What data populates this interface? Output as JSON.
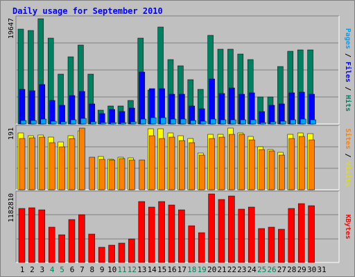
{
  "chart_data": {
    "type": "bar",
    "title": "Daily usage for September 2010",
    "categories": [
      "1",
      "2",
      "3",
      "4",
      "5",
      "6",
      "7",
      "8",
      "9",
      "10",
      "11",
      "12",
      "13",
      "14",
      "15",
      "16",
      "17",
      "18",
      "19",
      "20",
      "21",
      "22",
      "23",
      "24",
      "25",
      "26",
      "27",
      "28",
      "29",
      "30",
      "31"
    ],
    "weekend_days": [
      "4",
      "5",
      "11",
      "12",
      "18",
      "19",
      "25",
      "26"
    ],
    "panels": [
      {
        "id": "hits-files-pages",
        "max_label": "19647",
        "ymax": 19647,
        "right_labels": [
          {
            "text": "Pages",
            "color": "#00a0ff"
          },
          {
            "text": " / ",
            "color": "#000000"
          },
          {
            "text": "Files",
            "color": "#0000ff"
          },
          {
            "text": " / ",
            "color": "#000000"
          },
          {
            "text": "Hits",
            "color": "#008060"
          }
        ],
        "series": [
          {
            "name": "Hits",
            "color": "#008060",
            "values": [
              17660,
              17440,
              19647,
              16000,
              9320,
              12500,
              14700,
              9320,
              2540,
              3350,
              3350,
              4430,
              16060,
              6310,
              18100,
              12040,
              10900,
              8240,
              6430,
              16500,
              13900,
              13900,
              13000,
              11970,
              5010,
              5010,
              10790,
              13580,
              13800,
              13800,
              0
            ]
          },
          {
            "name": "Files",
            "color": "#0000ff",
            "values": [
              6450,
              6160,
              7310,
              4340,
              3430,
              5310,
              6120,
              3700,
              1880,
              2750,
              2350,
              2950,
              9680,
              6530,
              6530,
              5510,
              5500,
              3300,
              2800,
              8450,
              5720,
              6700,
              5510,
              5800,
              2390,
              3500,
              3700,
              5780,
              5940,
              5600,
              0
            ]
          },
          {
            "name": "Pages",
            "color": "#00a0ff",
            "values": [
              620,
              600,
              960,
              480,
              360,
              800,
              1000,
              400,
              200,
              300,
              280,
              400,
              900,
              1160,
              1150,
              880,
              900,
              600,
              480,
              860,
              800,
              800,
              760,
              760,
              300,
              360,
              500,
              840,
              860,
              840,
              0
            ]
          }
        ]
      },
      {
        "id": "visits-sites",
        "max_label": "191",
        "ymax": 191,
        "right_labels": [
          {
            "text": "Sites",
            "color": "#ff8000"
          },
          {
            "text": " / ",
            "color": "#000000"
          },
          {
            "text": "Visits",
            "color": "#e0e000"
          }
        ],
        "series": [
          {
            "name": "Visits",
            "color": "#ffff00",
            "values": [
              176,
              167,
              169,
              164,
              149,
              167,
              182,
              0,
              102,
              95,
              100,
              98,
              0,
              188,
              188,
              175,
              168,
              158,
              113,
              172,
              172,
              191,
              176,
              165,
              132,
              125,
              115,
              172,
              176,
              174,
              0
            ]
          },
          {
            "name": "Sites",
            "color": "#ff8000",
            "values": [
              158,
              161,
              164,
              147,
              133,
              158,
              191,
              100,
              94,
              93,
              97,
              93,
              93,
              167,
              158,
              164,
              152,
              147,
              108,
              158,
              164,
              172,
              172,
              155,
              124,
              120,
              107,
              158,
              165,
              155,
              0
            ]
          }
        ]
      },
      {
        "id": "kbytes",
        "max_label": "1182810",
        "ymax": 1182810,
        "right_labels": [
          {
            "text": "KBytes",
            "color": "#ff0000"
          }
        ],
        "series": [
          {
            "name": "KBytes",
            "color": "#ff0000",
            "values": [
              929000,
              939000,
              906000,
              604000,
              476000,
              745000,
              829000,
              484000,
              258000,
              297000,
              338000,
              402000,
              1050000,
              952000,
              1050000,
              997000,
              906000,
              632000,
              508000,
              1182810,
              1092000,
              1150000,
              914000,
              960000,
              588000,
              612000,
              579000,
              936000,
              1020000,
              979000,
              0
            ]
          }
        ]
      }
    ]
  }
}
